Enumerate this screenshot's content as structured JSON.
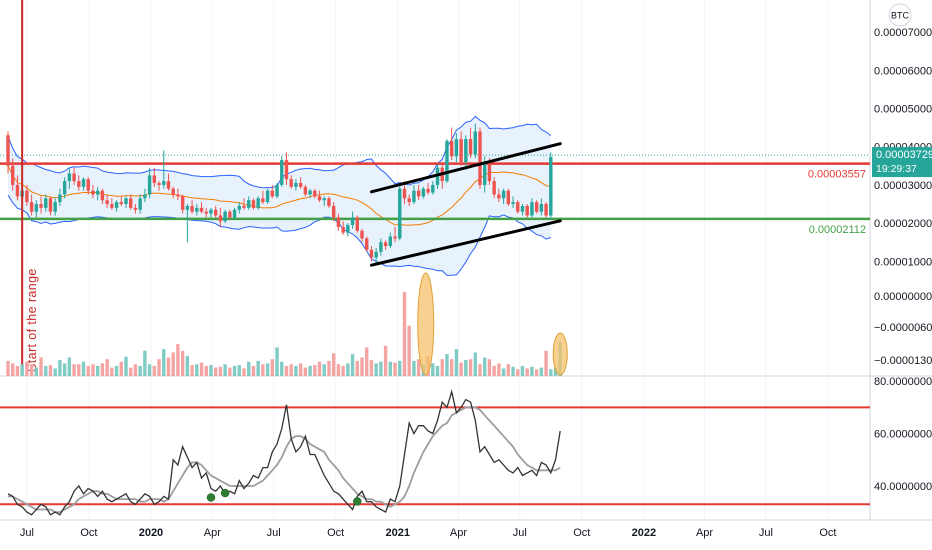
{
  "colors": {
    "up": "#26a69a",
    "down": "#ef5350",
    "vol_up": "#80cbc4",
    "vol_down": "#f4a5a3",
    "bb_line": "#2962ff",
    "bb_fill": "#e3f0fc",
    "ma": "#f57c00",
    "resistance": "#e53935",
    "support": "#43a047",
    "trend": "#000000",
    "highlight_fill": "#f5c26b",
    "highlight_stroke": "#e0a030",
    "rsi": "#333333",
    "rsi_ma": "#9e9e9e",
    "marker": "#2e7d32",
    "start_line": "#c62828",
    "axis_text": "#131722",
    "badge_last": "#26a69a"
  },
  "chart_data": [
    {
      "type": "candlestick",
      "panel": "price",
      "currency": "BTC",
      "y_ticks": [
        "0.00007000",
        "0.00006000",
        "0.00005000",
        "0.00004000",
        "0.00003000",
        "0.00002000",
        "0.00001000"
      ],
      "y_tick_values": [
        7e-05,
        6e-05,
        5e-05,
        4e-05,
        3e-05,
        2e-05,
        1e-05
      ],
      "ylim": [
        2.5e-06,
        7.84e-05
      ],
      "dates_range": [
        "2019-06-03",
        "2021-08-30"
      ],
      "horizontal_levels": [
        {
          "label": "0.00003557",
          "value": 3.557e-05,
          "color": "resistance"
        },
        {
          "label": "0.00002112",
          "value": 2.112e-05,
          "color": "support"
        }
      ],
      "dotted_level": 3.78e-05,
      "last_price": {
        "label": "0.00003729",
        "value": 3.729e-05,
        "countdown": "19:29:37"
      },
      "trend_channel": [
        {
          "from": [
            "2020-11-23",
            2.82e-05
          ],
          "to": [
            "2021-08-30",
            4.08e-05
          ]
        },
        {
          "from": [
            "2020-11-23",
            9e-06
          ],
          "to": [
            "2021-08-30",
            2.06e-05
          ]
        }
      ],
      "annotation": {
        "text": "Start of the range",
        "date": "2019-06-24"
      },
      "candles_weekly": [
        [
          4.3e-05,
          4.4e-05,
          3.3e-05,
          3.5e-05
        ],
        [
          3.5e-05,
          3.7e-05,
          2.85e-05,
          3e-05
        ],
        [
          3e-05,
          3.25e-05,
          2.6e-05,
          2.7e-05
        ],
        [
          2.7e-05,
          3e-05,
          2.5e-05,
          2.85e-05
        ],
        [
          2.85e-05,
          3e-05,
          2.45e-05,
          2.55e-05
        ],
        [
          2.55e-05,
          2.75e-05,
          2.2e-05,
          2.3e-05
        ],
        [
          2.3e-05,
          2.6e-05,
          2.15e-05,
          2.5e-05
        ],
        [
          2.5e-05,
          2.7e-05,
          2.25e-05,
          2.4e-05
        ],
        [
          2.4e-05,
          2.75e-05,
          2.3e-05,
          2.65e-05
        ],
        [
          2.65e-05,
          2.7e-05,
          2.2e-05,
          2.3e-05
        ],
        [
          2.3e-05,
          2.65e-05,
          2.2e-05,
          2.55e-05
        ],
        [
          2.55e-05,
          2.9e-05,
          2.45e-05,
          2.75e-05
        ],
        [
          2.75e-05,
          3.2e-05,
          2.65e-05,
          3.1e-05
        ],
        [
          3.1e-05,
          3.45e-05,
          2.9e-05,
          3.3e-05
        ],
        [
          3.3e-05,
          3.45e-05,
          3e-05,
          3.1e-05
        ],
        [
          3.1e-05,
          3.25e-05,
          2.85e-05,
          2.95e-05
        ],
        [
          2.95e-05,
          3.2e-05,
          2.85e-05,
          3.15e-05
        ],
        [
          3.15e-05,
          3.2e-05,
          2.75e-05,
          2.85e-05
        ],
        [
          2.85e-05,
          3e-05,
          2.65e-05,
          2.75e-05
        ],
        [
          2.75e-05,
          2.95e-05,
          2.6e-05,
          2.85e-05
        ],
        [
          2.85e-05,
          2.9e-05,
          2.5e-05,
          2.6e-05
        ],
        [
          2.6e-05,
          2.75e-05,
          2.4e-05,
          2.5e-05
        ],
        [
          2.5e-05,
          2.65e-05,
          2.35e-05,
          2.4e-05
        ],
        [
          2.4e-05,
          2.6e-05,
          2.3e-05,
          2.55e-05
        ],
        [
          2.55e-05,
          2.7e-05,
          2.45e-05,
          2.5e-05
        ],
        [
          2.5e-05,
          2.7e-05,
          2.4e-05,
          2.65e-05
        ],
        [
          2.65e-05,
          2.75e-05,
          2.35e-05,
          2.4e-05
        ],
        [
          2.4e-05,
          2.5e-05,
          2.25e-05,
          2.35e-05
        ],
        [
          2.35e-05,
          2.75e-05,
          2.25e-05,
          2.65e-05
        ],
        [
          2.65e-05,
          2.9e-05,
          2.55e-05,
          2.75e-05
        ],
        [
          2.75e-05,
          3.45e-05,
          2.65e-05,
          3.25e-05
        ],
        [
          3.25e-05,
          3.45e-05,
          2.95e-05,
          3.05e-05
        ],
        [
          3.05e-05,
          3.1e-05,
          2.85e-05,
          3e-05
        ],
        [
          3e-05,
          3.9e-05,
          2.9e-05,
          3.1e-05
        ],
        [
          3.1e-05,
          3.3e-05,
          2.85e-05,
          2.9e-05
        ],
        [
          2.9e-05,
          2.95e-05,
          2.65e-05,
          2.75e-05
        ],
        [
          2.75e-05,
          2.9e-05,
          2.6e-05,
          2.7e-05
        ],
        [
          2.7e-05,
          2.75e-05,
          2.25e-05,
          2.35e-05
        ],
        [
          2.35e-05,
          2.5e-05,
          1.5e-05,
          2.45e-05
        ],
        [
          2.45e-05,
          2.6e-05,
          2.25e-05,
          2.3e-05
        ],
        [
          2.3e-05,
          2.5e-05,
          2.2e-05,
          2.4e-05
        ],
        [
          2.4e-05,
          2.55e-05,
          2.25e-05,
          2.3e-05
        ],
        [
          2.3e-05,
          2.4e-05,
          2.15e-05,
          2.25e-05
        ],
        [
          2.25e-05,
          2.4e-05,
          2.15e-05,
          2.35e-05
        ],
        [
          2.35e-05,
          2.45e-05,
          2.15e-05,
          2.2e-05
        ],
        [
          2.2e-05,
          2.4e-05,
          1.9e-05,
          2.05e-05
        ],
        [
          2.05e-05,
          2.35e-05,
          2e-05,
          2.3e-05
        ],
        [
          2.3e-05,
          2.35e-05,
          2.1e-05,
          2.15e-05
        ],
        [
          2.15e-05,
          2.4e-05,
          2.1e-05,
          2.35e-05
        ],
        [
          2.35e-05,
          2.55e-05,
          2.25e-05,
          2.45e-05
        ],
        [
          2.45e-05,
          2.65e-05,
          2.35e-05,
          2.4e-05
        ],
        [
          2.4e-05,
          2.7e-05,
          2.35e-05,
          2.6e-05
        ],
        [
          2.6e-05,
          2.65e-05,
          2.35e-05,
          2.4e-05
        ],
        [
          2.4e-05,
          2.7e-05,
          2.35e-05,
          2.65e-05
        ],
        [
          2.65e-05,
          2.85e-05,
          2.5e-05,
          2.55e-05
        ],
        [
          2.55e-05,
          2.9e-05,
          2.5e-05,
          2.85e-05
        ],
        [
          2.85e-05,
          3e-05,
          2.65e-05,
          2.7e-05
        ],
        [
          2.7e-05,
          3.05e-05,
          2.65e-05,
          3e-05
        ],
        [
          3e-05,
          3.75e-05,
          2.95e-05,
          3.65e-05
        ],
        [
          3.65e-05,
          3.85e-05,
          3e-05,
          3.15e-05
        ],
        [
          3.15e-05,
          3.25e-05,
          2.9e-05,
          2.95e-05
        ],
        [
          2.95e-05,
          3.15e-05,
          2.85e-05,
          3.05e-05
        ],
        [
          3.05e-05,
          3.2e-05,
          2.9e-05,
          2.95e-05
        ],
        [
          2.95e-05,
          3e-05,
          2.7e-05,
          2.75e-05
        ],
        [
          2.75e-05,
          2.9e-05,
          2.65e-05,
          2.85e-05
        ],
        [
          2.85e-05,
          2.9e-05,
          2.65e-05,
          2.7e-05
        ],
        [
          2.7e-05,
          2.85e-05,
          2.55e-05,
          2.6e-05
        ],
        [
          2.6e-05,
          2.7e-05,
          2.45e-05,
          2.65e-05
        ],
        [
          2.65e-05,
          2.7e-05,
          2.4e-05,
          2.45e-05
        ],
        [
          2.45e-05,
          2.55e-05,
          2.05e-05,
          2.15e-05
        ],
        [
          2.15e-05,
          2.25e-05,
          1.8e-05,
          1.9e-05
        ],
        [
          1.9e-05,
          2.05e-05,
          1.7e-05,
          1.75e-05
        ],
        [
          1.75e-05,
          2e-05,
          1.65e-05,
          1.95e-05
        ],
        [
          1.95e-05,
          2.3e-05,
          1.85e-05,
          2.15e-05
        ],
        [
          2.15e-05,
          2.2e-05,
          1.75e-05,
          1.8e-05
        ],
        [
          1.8e-05,
          1.85e-05,
          1.5e-05,
          1.6e-05
        ],
        [
          1.6e-05,
          1.65e-05,
          1.25e-05,
          1.3e-05
        ],
        [
          1.3e-05,
          1.4e-05,
          1e-05,
          1.1e-05
        ],
        [
          1.1e-05,
          1.35e-05,
          9.5e-06,
          1.25e-05
        ],
        [
          1.25e-05,
          1.6e-05,
          1.15e-05,
          1.5e-05
        ],
        [
          1.5e-05,
          1.55e-05,
          1.3e-05,
          1.4e-05
        ],
        [
          1.4e-05,
          1.75e-05,
          1.35e-05,
          1.65e-05
        ],
        [
          1.65e-05,
          1.9e-05,
          1.5e-05,
          1.6e-05
        ],
        [
          1.6e-05,
          3.05e-05,
          1.55e-05,
          2.9e-05
        ],
        [
          2.9e-05,
          3.1e-05,
          2.5e-05,
          2.65e-05
        ],
        [
          2.65e-05,
          2.75e-05,
          2.45e-05,
          2.55e-05
        ],
        [
          2.55e-05,
          3e-05,
          2.5e-05,
          2.85e-05
        ],
        [
          2.85e-05,
          3e-05,
          2.6e-05,
          2.7e-05
        ],
        [
          2.7e-05,
          2.95e-05,
          2.65e-05,
          2.9e-05
        ],
        [
          2.9e-05,
          3.05e-05,
          2.75e-05,
          2.8e-05
        ],
        [
          2.8e-05,
          3.1e-05,
          2.75e-05,
          3e-05
        ],
        [
          3e-05,
          3.55e-05,
          2.9e-05,
          3.45e-05
        ],
        [
          3.45e-05,
          3.6e-05,
          2.9e-05,
          3.1e-05
        ],
        [
          3.1e-05,
          4.2e-05,
          3.05e-05,
          4.15e-05
        ],
        [
          4.15e-05,
          4.5e-05,
          3.65e-05,
          3.75e-05
        ],
        [
          3.75e-05,
          4.35e-05,
          3.6e-05,
          4.2e-05
        ],
        [
          4.2e-05,
          4.4e-05,
          3.5e-05,
          3.6e-05
        ],
        [
          3.6e-05,
          4.3e-05,
          3.4e-05,
          4.2e-05
        ],
        [
          4.2e-05,
          4.5e-05,
          3.7e-05,
          3.8e-05
        ],
        [
          3.8e-05,
          4.6e-05,
          3.7e-05,
          4.4e-05
        ],
        [
          4.4e-05,
          4.5e-05,
          2.9e-05,
          3e-05
        ],
        [
          3e-05,
          3.75e-05,
          2.8e-05,
          3.55e-05
        ],
        [
          3.55e-05,
          3.7e-05,
          3e-05,
          3.1e-05
        ],
        [
          3.1e-05,
          3.2e-05,
          2.65e-05,
          2.75e-05
        ],
        [
          2.75e-05,
          2.9e-05,
          2.55e-05,
          2.65e-05
        ],
        [
          2.65e-05,
          2.9e-05,
          2.5e-05,
          2.85e-05
        ],
        [
          2.85e-05,
          2.9e-05,
          2.45e-05,
          2.5e-05
        ],
        [
          2.5e-05,
          2.7e-05,
          2.4e-05,
          2.55e-05
        ],
        [
          2.55e-05,
          2.6e-05,
          2.25e-05,
          2.3e-05
        ],
        [
          2.3e-05,
          2.5e-05,
          2.2e-05,
          2.45e-05
        ],
        [
          2.45e-05,
          2.5e-05,
          2.15e-05,
          2.2e-05
        ],
        [
          2.2e-05,
          2.65e-05,
          2.15e-05,
          2.55e-05
        ],
        [
          2.55e-05,
          2.6e-05,
          2.25e-05,
          2.3e-05
        ],
        [
          2.3e-05,
          2.65e-05,
          2.2e-05,
          2.5e-05
        ],
        [
          2.5e-05,
          2.55e-05,
          2.15e-05,
          2.2e-05
        ],
        [
          2.2e-05,
          3.85e-05,
          2.1e-05,
          3.73e-05
        ]
      ]
    },
    {
      "type": "volume",
      "panel": "volume",
      "y_ticks": [
        "0.00000000",
        "−0.00000600",
        "−0.00001300"
      ],
      "highlights": [
        {
          "from": "2021-02-01",
          "to": "2021-02-22"
        },
        {
          "from": "2021-08-30",
          "to": "2021-08-30"
        }
      ],
      "values_relative": [
        18,
        15,
        12,
        14,
        17,
        14,
        10,
        22,
        12,
        13,
        9,
        19,
        15,
        22,
        14,
        14,
        17,
        12,
        14,
        12,
        15,
        20,
        10,
        12,
        17,
        23,
        10,
        14,
        12,
        30,
        14,
        12,
        20,
        32,
        22,
        28,
        38,
        30,
        24,
        13,
        14,
        16,
        12,
        13,
        10,
        11,
        14,
        10,
        12,
        13,
        9,
        17,
        12,
        18,
        14,
        15,
        20,
        34,
        17,
        12,
        14,
        12,
        15,
        10,
        12,
        13,
        17,
        14,
        18,
        27,
        14,
        12,
        15,
        26,
        18,
        22,
        34,
        19,
        15,
        17,
        36,
        17,
        16,
        18,
        100,
        60,
        18,
        20,
        14,
        24,
        15,
        12,
        20,
        26,
        20,
        32,
        16,
        19,
        20,
        28,
        14,
        22,
        20,
        12,
        15,
        9,
        14,
        11,
        8,
        12,
        9,
        11,
        8,
        10,
        30,
        8,
        10,
        40
      ]
    },
    {
      "type": "line",
      "panel": "rsi",
      "y_ticks": [
        "80.00000000",
        "60.00000000",
        "40.00000000"
      ],
      "ylim": [
        27,
        82
      ],
      "levels": [
        70,
        33
      ],
      "rsi": [
        37,
        36,
        33,
        32,
        30,
        29,
        31,
        33,
        32,
        29,
        30,
        29,
        32,
        34,
        38,
        40,
        37,
        39,
        38,
        36,
        38,
        35,
        34,
        35,
        36,
        37,
        34,
        33,
        35,
        37,
        36,
        33,
        34,
        36,
        35,
        50,
        48,
        55,
        51,
        47,
        49,
        43,
        45,
        39,
        38,
        40,
        37,
        38,
        37,
        42,
        39,
        41,
        44,
        43,
        47,
        47,
        53,
        56,
        62,
        71,
        58,
        53,
        55,
        59,
        52,
        52,
        48,
        44,
        41,
        38,
        37,
        35,
        33,
        31,
        36,
        38,
        34,
        34,
        32,
        31,
        30,
        35,
        34,
        40,
        52,
        64,
        60,
        63,
        63,
        61,
        60,
        65,
        72,
        70,
        76,
        68,
        70,
        73,
        72,
        65,
        53,
        55,
        52,
        49,
        50,
        48,
        46,
        45,
        47,
        44,
        45,
        46,
        44,
        49,
        48,
        45,
        50,
        61
      ],
      "rsi_ma": [
        36,
        36,
        35,
        34,
        33,
        32,
        31,
        31,
        31,
        31,
        30,
        30,
        31,
        32,
        33,
        35,
        36,
        37,
        38,
        38,
        37,
        37,
        36,
        35,
        35,
        35,
        35,
        35,
        34,
        34,
        35,
        35,
        35,
        34,
        35,
        38,
        41,
        44,
        47,
        49,
        49,
        48,
        46,
        44,
        43,
        42,
        41,
        40,
        40,
        40,
        40,
        40,
        40,
        41,
        42,
        44,
        46,
        48,
        51,
        55,
        58,
        59,
        59,
        58,
        56,
        55,
        54,
        53,
        50,
        48,
        46,
        43,
        41,
        39,
        37,
        36,
        35,
        35,
        34,
        34,
        33,
        32,
        33,
        34,
        36,
        40,
        45,
        49,
        53,
        56,
        59,
        61,
        63,
        64,
        67,
        68,
        69,
        70,
        70,
        70,
        69,
        67,
        65,
        63,
        61,
        59,
        57,
        55,
        52,
        50,
        48,
        47,
        46,
        46,
        46,
        46,
        46,
        47
      ],
      "markers": [
        {
          "date": "2020-03-30",
          "value": 35.6
        },
        {
          "date": "2020-04-20",
          "value": 37.3
        },
        {
          "date": "2020-11-02",
          "value": 34.1
        }
      ]
    }
  ],
  "time_axis": {
    "labels": [
      {
        "text": "Jul",
        "date": "2019-07-01"
      },
      {
        "text": "Oct",
        "date": "2019-10-01"
      },
      {
        "text": "2020",
        "date": "2020-01-01",
        "bold": true
      },
      {
        "text": "Apr",
        "date": "2020-04-01"
      },
      {
        "text": "Jul",
        "date": "2020-07-01"
      },
      {
        "text": "Oct",
        "date": "2020-10-01"
      },
      {
        "text": "2021",
        "date": "2021-01-01",
        "bold": true
      },
      {
        "text": "Apr",
        "date": "2021-04-01"
      },
      {
        "text": "Jul",
        "date": "2021-07-01"
      },
      {
        "text": "Oct",
        "date": "2021-10-01"
      },
      {
        "text": "2022",
        "date": "2022-01-01",
        "bold": true
      },
      {
        "text": "Apr",
        "date": "2022-04-01"
      },
      {
        "text": "Jul",
        "date": "2022-07-01"
      },
      {
        "text": "Oct",
        "date": "2022-10-01"
      }
    ]
  }
}
